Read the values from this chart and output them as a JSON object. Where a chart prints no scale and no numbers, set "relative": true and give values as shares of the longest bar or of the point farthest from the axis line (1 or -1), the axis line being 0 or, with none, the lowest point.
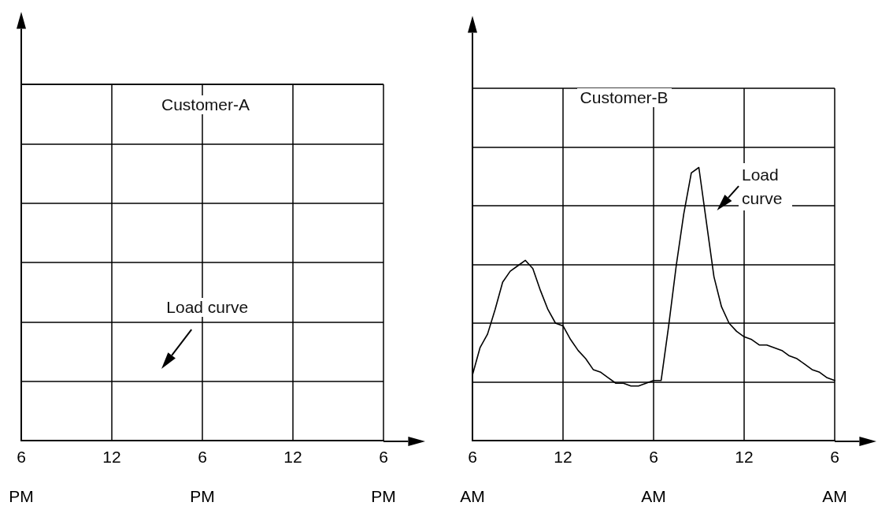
{
  "chart_data": [
    {
      "type": "other",
      "categories": [
        "6\n\nPM",
        null,
        null,
        null,
        null,
        null,
        null,
        null,
        null,
        null,
        null,
        null,
        "12",
        null,
        null,
        null,
        null,
        null,
        null,
        null,
        null,
        null,
        null,
        null,
        "6\n\nPM",
        null,
        null,
        null,
        null,
        null,
        null,
        null,
        null,
        null,
        null,
        null,
        "12",
        null,
        null,
        null,
        null,
        null,
        null,
        null,
        null,
        null,
        null,
        null,
        "6\n\nPM"
      ],
      "annotations": [
        "Customer-A",
        "Load curve"
      ]
    },
    {
      "type": "line",
      "relative": true,
      "grid": true,
      "marker": "none",
      "categories": [
        "6\n\nAM",
        null,
        null,
        null,
        null,
        null,
        null,
        null,
        null,
        null,
        null,
        null,
        "12",
        null,
        null,
        null,
        null,
        null,
        null,
        null,
        null,
        null,
        null,
        null,
        "6\n\nAM",
        null,
        null,
        null,
        null,
        null,
        null,
        null,
        null,
        null,
        null,
        null,
        "12",
        null,
        null,
        null,
        null,
        null,
        null,
        null,
        null,
        null,
        null,
        null,
        "6\n\nAM"
      ],
      "annotations": [
        "Customer-B",
        "Load curve"
      ],
      "series": [
        {
          "color": "#000000",
          "values": [
            0.24,
            0.34,
            0.39,
            0.48,
            0.58,
            0.62,
            0.64,
            0.66,
            0.63,
            0.55,
            0.48,
            0.43,
            0.42,
            0.37,
            0.33,
            0.3,
            0.26,
            0.25,
            0.23,
            0.21,
            0.21,
            0.2,
            0.2,
            0.21,
            0.22,
            0.22,
            0.42,
            0.64,
            0.83,
            0.98,
            1.0,
            0.8,
            0.6,
            0.49,
            0.43,
            0.4,
            0.38,
            0.37,
            0.35,
            0.35,
            0.34,
            0.33,
            0.31,
            0.3,
            0.28,
            0.26,
            0.25,
            0.23,
            0.22
          ]
        }
      ]
    }
  ]
}
